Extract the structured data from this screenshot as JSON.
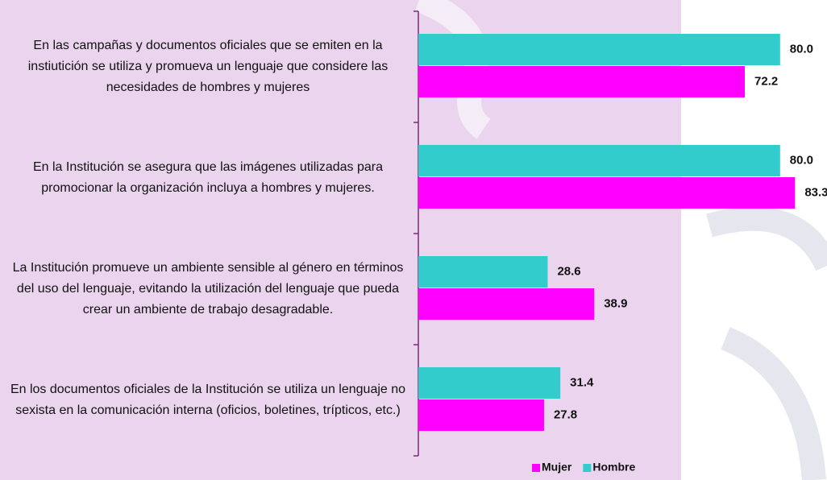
{
  "chart_data": {
    "type": "bar",
    "orientation": "horizontal",
    "categories": [
      "En las campañas y documentos oficiales que se emiten en la instiutición se utiliza y promueva un lenguaje que considere las necesidades de hombres y mujeres",
      "En la Institución se asegura que las imágenes utilizadas para promocionar la organización incluya a hombres y mujeres.",
      "La Institución promueve un ambiente sensible al género en términos del uso del lenguaje, evitando la utilización del lenguaje que pueda crear un ambiente de trabajo desagradable.",
      "En los documentos oficiales de la Institución se utiliza un lenguaje no sexista en la comunicación interna (oficios, boletines, trípticos, etc.)"
    ],
    "series": [
      {
        "name": "Mujer",
        "color": "#ff00ff",
        "values": [
          72.2,
          83.3,
          38.9,
          27.8
        ],
        "value_labels": [
          "72.2",
          "83.3",
          "38.9",
          "27.8"
        ]
      },
      {
        "name": "Hombre",
        "color": "#33cccc",
        "values": [
          80.0,
          80.0,
          28.6,
          31.4
        ],
        "value_labels": [
          "80.0",
          "80.0",
          "28.6",
          "31.4"
        ]
      }
    ],
    "xlim": [
      0,
      100
    ],
    "legend": "bottom"
  }
}
